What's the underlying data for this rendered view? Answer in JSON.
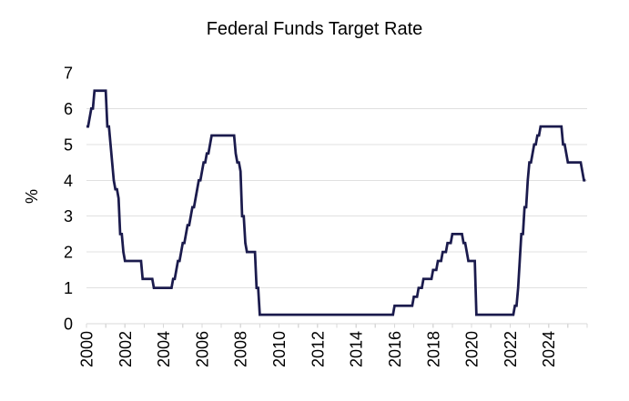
{
  "chart_data": {
    "type": "line",
    "title": "Federal Funds Target Rate",
    "ylabel": "%",
    "xlabel": "",
    "legend": "none",
    "grid": "horizontal",
    "x_axis": {
      "min": 2000,
      "max": 2026,
      "minor_tick_every_years": 1,
      "label_every_years": 2,
      "tick_labels": [
        "2000",
        "2002",
        "2004",
        "2006",
        "2008",
        "2010",
        "2012",
        "2014",
        "2016",
        "2018",
        "2020",
        "2022",
        "2024"
      ],
      "label_rotation_deg": -90
    },
    "y_axis": {
      "min": 0,
      "max": 7,
      "tick_labels": [
        "0",
        "1",
        "2",
        "3",
        "4",
        "5",
        "6",
        "7"
      ],
      "gridlines_at": [
        1,
        2,
        3,
        4,
        5,
        6
      ]
    },
    "colors": {
      "line": "#1B1B4D",
      "gridline": "#E0E0E0",
      "axis": "#D9D9D9",
      "text": "#000000",
      "background": "#FFFFFF"
    },
    "series": [
      {
        "name": "Federal Funds Target Rate",
        "color": "#1B1B4D",
        "points_format": "[decimal_year, percent]; rate effective from that date (step series)",
        "points": [
          [
            2000.0,
            5.5
          ],
          [
            2000.09,
            5.75
          ],
          [
            2000.22,
            6.0
          ],
          [
            2000.37,
            6.5
          ],
          [
            2001.01,
            6.0
          ],
          [
            2001.08,
            5.5
          ],
          [
            2001.21,
            5.0
          ],
          [
            2001.3,
            4.5
          ],
          [
            2001.37,
            4.0
          ],
          [
            2001.49,
            3.75
          ],
          [
            2001.64,
            3.5
          ],
          [
            2001.71,
            3.0
          ],
          [
            2001.75,
            2.5
          ],
          [
            2001.85,
            2.0
          ],
          [
            2001.94,
            1.75
          ],
          [
            2002.85,
            1.25
          ],
          [
            2003.48,
            1.0
          ],
          [
            2004.5,
            1.25
          ],
          [
            2004.61,
            1.5
          ],
          [
            2004.72,
            1.75
          ],
          [
            2004.86,
            2.0
          ],
          [
            2004.95,
            2.25
          ],
          [
            2005.09,
            2.5
          ],
          [
            2005.22,
            2.75
          ],
          [
            2005.34,
            3.0
          ],
          [
            2005.5,
            3.25
          ],
          [
            2005.61,
            3.5
          ],
          [
            2005.72,
            3.75
          ],
          [
            2005.83,
            4.0
          ],
          [
            2005.95,
            4.25
          ],
          [
            2006.08,
            4.5
          ],
          [
            2006.24,
            4.75
          ],
          [
            2006.36,
            5.0
          ],
          [
            2006.49,
            5.25
          ],
          [
            2007.71,
            4.75
          ],
          [
            2007.83,
            4.5
          ],
          [
            2007.94,
            4.25
          ],
          [
            2008.06,
            3.5
          ],
          [
            2008.08,
            3.0
          ],
          [
            2008.21,
            2.25
          ],
          [
            2008.33,
            2.0
          ],
          [
            2008.77,
            1.5
          ],
          [
            2008.83,
            1.0
          ],
          [
            2008.96,
            0.25
          ],
          [
            2015.96,
            0.5
          ],
          [
            2016.95,
            0.75
          ],
          [
            2017.21,
            1.0
          ],
          [
            2017.45,
            1.25
          ],
          [
            2017.95,
            1.5
          ],
          [
            2018.22,
            1.75
          ],
          [
            2018.45,
            2.0
          ],
          [
            2018.74,
            2.25
          ],
          [
            2018.97,
            2.5
          ],
          [
            2019.58,
            2.25
          ],
          [
            2019.72,
            2.0
          ],
          [
            2019.83,
            1.75
          ],
          [
            2020.17,
            1.25
          ],
          [
            2020.21,
            0.25
          ],
          [
            2022.21,
            0.5
          ],
          [
            2022.34,
            1.0
          ],
          [
            2022.46,
            1.75
          ],
          [
            2022.57,
            2.5
          ],
          [
            2022.73,
            3.25
          ],
          [
            2022.84,
            4.0
          ],
          [
            2022.96,
            4.5
          ],
          [
            2023.09,
            4.75
          ],
          [
            2023.22,
            5.0
          ],
          [
            2023.34,
            5.25
          ],
          [
            2023.57,
            5.5
          ],
          [
            2024.72,
            5.0
          ],
          [
            2024.86,
            4.75
          ],
          [
            2024.97,
            4.5
          ],
          [
            2025.72,
            4.25
          ],
          [
            2025.83,
            4.0
          ]
        ],
        "end_year": 2025.92
      }
    ]
  }
}
